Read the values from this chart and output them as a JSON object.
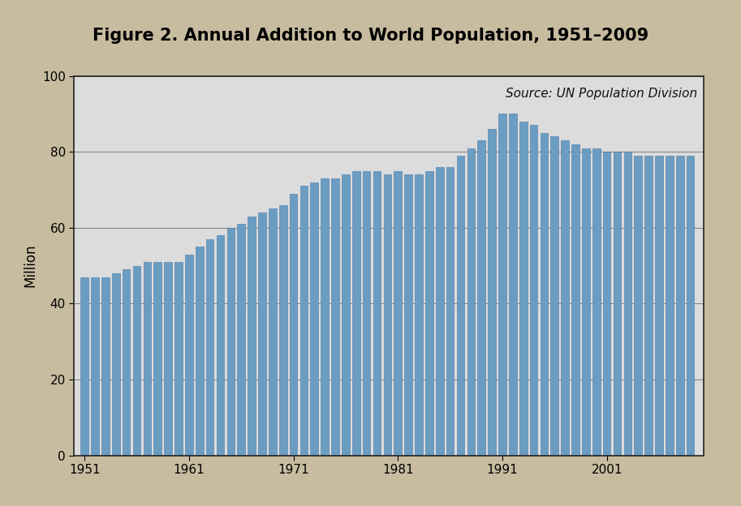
{
  "title": "Figure 2. Annual Addition to World Population, 1951–2009",
  "ylabel": "Million",
  "source_text": "Source: UN Population Division",
  "figure_bg_color": "#c8bca0",
  "plot_bg_color": "#dcdcdc",
  "bar_color": "#6b9dc2",
  "bar_edge_color": "#4a7aab",
  "years": [
    1951,
    1952,
    1953,
    1954,
    1955,
    1956,
    1957,
    1958,
    1959,
    1960,
    1961,
    1962,
    1963,
    1964,
    1965,
    1966,
    1967,
    1968,
    1969,
    1970,
    1971,
    1972,
    1973,
    1974,
    1975,
    1976,
    1977,
    1978,
    1979,
    1980,
    1981,
    1982,
    1983,
    1984,
    1985,
    1986,
    1987,
    1988,
    1989,
    1990,
    1991,
    1992,
    1993,
    1994,
    1995,
    1996,
    1997,
    1998,
    1999,
    2000,
    2001,
    2002,
    2003,
    2004,
    2005,
    2006,
    2007,
    2008,
    2009
  ],
  "values": [
    47,
    47,
    47,
    48,
    49,
    50,
    51,
    51,
    51,
    51,
    53,
    55,
    57,
    58,
    60,
    61,
    63,
    64,
    65,
    66,
    69,
    71,
    72,
    73,
    73,
    74,
    75,
    75,
    75,
    74,
    75,
    74,
    74,
    75,
    76,
    76,
    79,
    81,
    83,
    86,
    90,
    90,
    88,
    87,
    85,
    84,
    83,
    82,
    81,
    81,
    80,
    80,
    80,
    79,
    79,
    79,
    79,
    79,
    79
  ],
  "ylim": [
    0,
    100
  ],
  "yticks": [
    0,
    20,
    40,
    60,
    80,
    100
  ],
  "xtick_years": [
    1951,
    1961,
    1971,
    1981,
    1991,
    2001
  ],
  "grid_color": "#888888",
  "grid_linewidth": 0.8,
  "title_fontsize": 15,
  "ylabel_fontsize": 12,
  "tick_fontsize": 11,
  "source_fontsize": 11,
  "spine_color": "#222222",
  "bar_width": 0.75
}
